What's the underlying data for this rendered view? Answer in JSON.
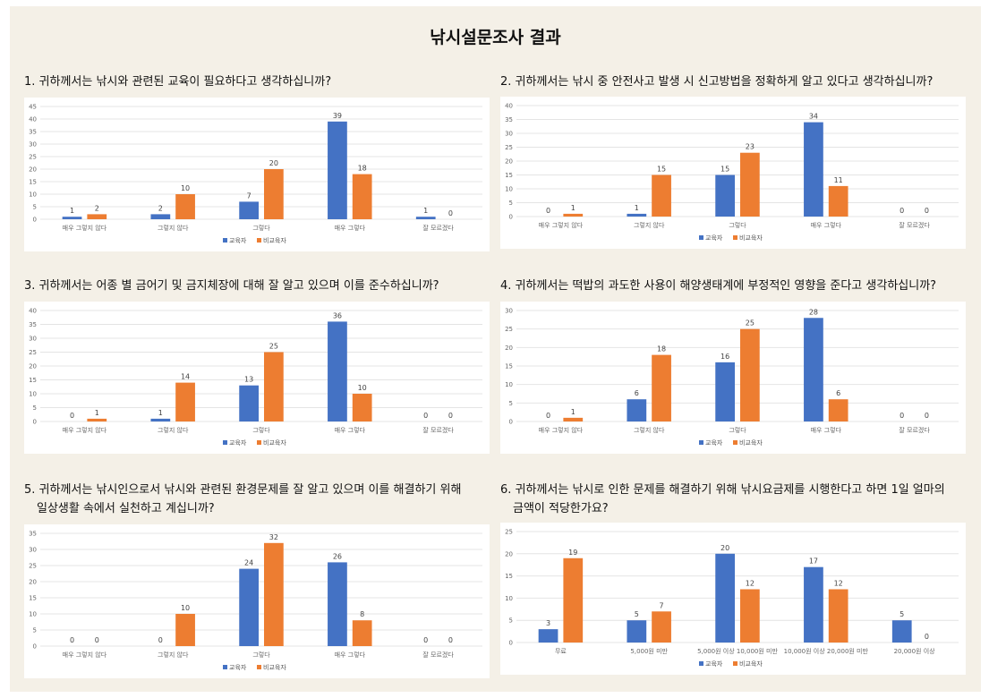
{
  "page_title": "낚시설문조사 결과",
  "colors": {
    "series1": "#4472c4",
    "series2": "#ed7d31",
    "grid": "#e4e4e4",
    "background": "#f4f0e7"
  },
  "chart_data": [
    {
      "type": "bar",
      "title": "1. 귀하께서는 낚시와 관련된 교육이 필요하다고 생각하십니까?",
      "categories": [
        "매우 그렇지 않다",
        "그렇지 않다",
        "그렇다",
        "매우 그렇다",
        "잘 모르겠다"
      ],
      "series": [
        {
          "name": "교육자",
          "values": [
            1,
            2,
            7,
            39,
            1
          ]
        },
        {
          "name": "비교육자",
          "values": [
            2,
            10,
            20,
            18,
            0
          ]
        }
      ],
      "ylim": [
        0,
        45
      ],
      "yticks": [
        0,
        5,
        10,
        15,
        20,
        25,
        30,
        35,
        40,
        45
      ],
      "grid": true,
      "legend": "bottom"
    },
    {
      "type": "bar",
      "title": "2. 귀하께서는 낚시 중 안전사고 발생 시 신고방법을 정확하게 알고 있다고 생각하십니까?",
      "categories": [
        "매우 그렇지 않다",
        "그렇지 않다",
        "그렇다",
        "매우 그렇다",
        "잘 모르겠다"
      ],
      "series": [
        {
          "name": "교육자",
          "values": [
            0,
            1,
            15,
            34,
            0
          ]
        },
        {
          "name": "비교육자",
          "values": [
            1,
            15,
            23,
            11,
            0
          ]
        }
      ],
      "ylim": [
        0,
        40
      ],
      "yticks": [
        0,
        5,
        10,
        15,
        20,
        25,
        30,
        35,
        40
      ],
      "grid": true,
      "legend": "bottom"
    },
    {
      "type": "bar",
      "title": "3. 귀하께서는 어종 별 금어기 및 금지체장에 대해 잘 알고 있으며 이를 준수하십니까?",
      "categories": [
        "매우 그렇지 않다",
        "그렇지 않다",
        "그렇다",
        "매우 그렇다",
        "잘 모르겠다"
      ],
      "series": [
        {
          "name": "교육자",
          "values": [
            0,
            1,
            13,
            36,
            0
          ]
        },
        {
          "name": "비교육자",
          "values": [
            1,
            14,
            25,
            10,
            0
          ]
        }
      ],
      "ylim": [
        0,
        40
      ],
      "yticks": [
        0,
        5,
        10,
        15,
        20,
        25,
        30,
        35,
        40
      ],
      "grid": true,
      "legend": "bottom"
    },
    {
      "type": "bar",
      "title": "4. 귀하께서는 떡밥의 과도한 사용이 해양생태계에 부정적인 영향을 준다고 생각하십니까?",
      "categories": [
        "매우 그렇지 않다",
        "그렇지 않다",
        "그렇다",
        "매우 그렇다",
        "잘 모르겠다"
      ],
      "series": [
        {
          "name": "교육자",
          "values": [
            0,
            6,
            16,
            28,
            0
          ]
        },
        {
          "name": "비교육자",
          "values": [
            1,
            18,
            25,
            6,
            0
          ]
        }
      ],
      "ylim": [
        0,
        30
      ],
      "yticks": [
        0,
        5,
        10,
        15,
        20,
        25,
        30
      ],
      "grid": true,
      "legend": "bottom"
    },
    {
      "type": "bar",
      "title": "5. 귀하께서는 낚시인으로서 낚시와 관련된 환경문제를 잘 알고 있으며 이를 해결하기 위해\n일상생활 속에서 실천하고 계십니까?",
      "categories": [
        "매우 그렇지 않다",
        "그렇지 않다",
        "그렇다",
        "매우 그렇다",
        "잘 모르겠다"
      ],
      "series": [
        {
          "name": "교육자",
          "values": [
            0,
            0,
            24,
            26,
            0
          ]
        },
        {
          "name": "비교육자",
          "values": [
            0,
            10,
            32,
            8,
            0
          ]
        }
      ],
      "ylim": [
        0,
        35
      ],
      "yticks": [
        0,
        5,
        10,
        15,
        20,
        25,
        30,
        35
      ],
      "grid": true,
      "legend": "bottom"
    },
    {
      "type": "bar",
      "title": "6. 귀하께서는 낚시로 인한 문제를 해결하기 위해 낚시요금제를 시행한다고 하면 1일 얼마의\n금액이 적당한가요?",
      "categories": [
        "무료",
        "5,000원 미만",
        "5,000원 이상 10,000원 미만",
        "10,000원 이상 20,000원 미만",
        "20,000원 이상"
      ],
      "series": [
        {
          "name": "교육자",
          "values": [
            3,
            5,
            20,
            17,
            5
          ]
        },
        {
          "name": "비교육자",
          "values": [
            19,
            7,
            12,
            12,
            0
          ]
        }
      ],
      "ylim": [
        0,
        25
      ],
      "yticks": [
        0,
        5,
        10,
        15,
        20,
        25
      ],
      "grid": true,
      "legend": "bottom"
    }
  ]
}
